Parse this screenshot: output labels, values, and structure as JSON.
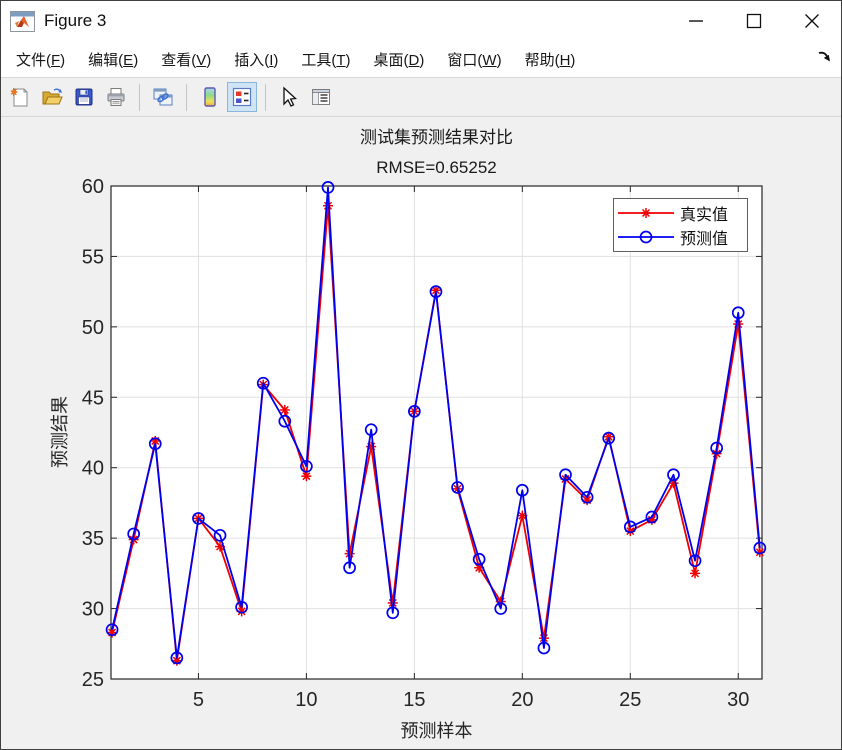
{
  "window": {
    "title": "Figure 3",
    "controls": [
      "minimize",
      "maximize",
      "close"
    ]
  },
  "menubar": {
    "items": [
      {
        "pre": "文件(",
        "accel": "F",
        "post": ")"
      },
      {
        "pre": "编辑(",
        "accel": "E",
        "post": ")"
      },
      {
        "pre": "查看(",
        "accel": "V",
        "post": ")"
      },
      {
        "pre": "插入(",
        "accel": "I",
        "post": ")"
      },
      {
        "pre": "工具(",
        "accel": "T",
        "post": ")"
      },
      {
        "pre": "桌面(",
        "accel": "D",
        "post": ")"
      },
      {
        "pre": "窗口(",
        "accel": "W",
        "post": ")"
      },
      {
        "pre": "帮助(",
        "accel": "H",
        "post": ")"
      }
    ]
  },
  "toolbar": {
    "buttons": [
      "new-figure",
      "open-file",
      "save-figure",
      "print-figure",
      "link-plot",
      "insert-colorbar",
      "insert-legend",
      "edit-plot",
      "property-inspector"
    ],
    "active_button": "insert-legend"
  },
  "colors": {
    "figure_bg": "#F0F0F0",
    "plot_bg": "#FFFFFF",
    "grid": "#E0E0E0",
    "axis": "#262626",
    "legend_border": "#5F5F5F",
    "real_series": "#F00000",
    "pred_series": "#0000F0"
  },
  "chart_data": {
    "type": "line",
    "title": "测试集预测结果对比",
    "subtitle": "RMSE=0.65252",
    "xlabel": "预测样本",
    "ylabel": "预测结果",
    "xlim": [
      0.95,
      31.1
    ],
    "ylim": [
      25,
      60
    ],
    "x_ticks": [
      5,
      10,
      15,
      20,
      25,
      30
    ],
    "y_ticks": [
      25,
      30,
      35,
      40,
      45,
      50,
      55,
      60
    ],
    "grid": true,
    "legend_position": "top-right",
    "x": [
      1,
      2,
      3,
      4,
      5,
      6,
      7,
      8,
      9,
      10,
      11,
      12,
      13,
      14,
      15,
      16,
      17,
      18,
      19,
      20,
      21,
      22,
      23,
      24,
      25,
      26,
      27,
      28,
      29,
      30,
      31
    ],
    "series": [
      {
        "name": "真实值",
        "color": "#F00000",
        "marker": "asterisk",
        "values": [
          28.3,
          34.9,
          41.9,
          26.3,
          36.4,
          34.4,
          29.8,
          45.9,
          44.1,
          39.4,
          58.6,
          33.9,
          41.5,
          30.4,
          44.0,
          52.6,
          38.5,
          32.9,
          30.5,
          36.6,
          27.9,
          39.2,
          37.7,
          42.2,
          35.5,
          36.3,
          38.9,
          32.5,
          41.0,
          50.2,
          34.0
        ]
      },
      {
        "name": "预测值",
        "color": "#0000F0",
        "marker": "circle",
        "values": [
          28.5,
          35.3,
          41.7,
          26.5,
          36.4,
          35.2,
          30.1,
          46.0,
          43.3,
          40.1,
          59.9,
          32.9,
          42.7,
          29.7,
          44.0,
          52.5,
          38.6,
          33.5,
          30.0,
          38.4,
          27.2,
          39.5,
          37.9,
          42.1,
          35.8,
          36.5,
          39.5,
          33.4,
          41.4,
          51.0,
          34.3
        ]
      }
    ]
  }
}
